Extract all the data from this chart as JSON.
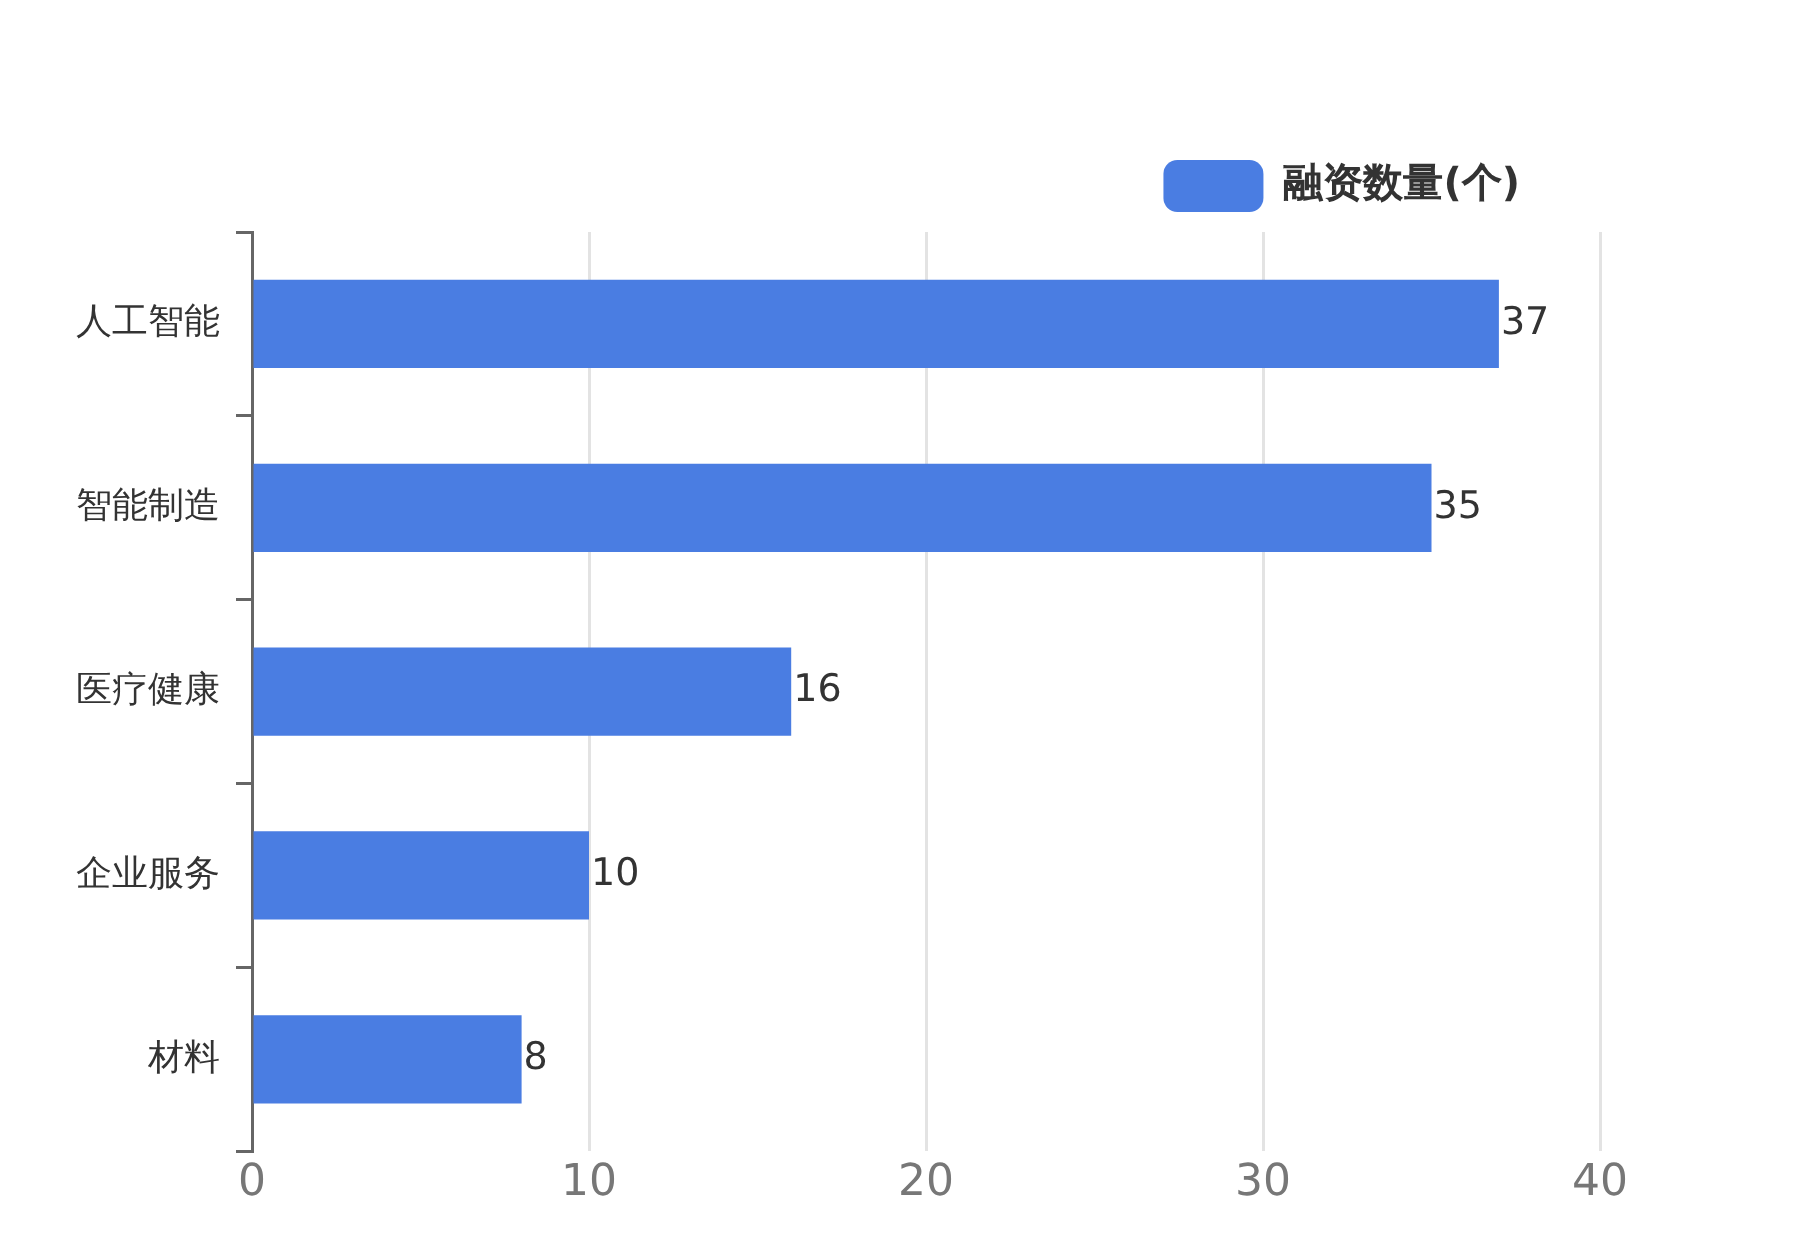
{
  "chart_data": {
    "type": "bar",
    "orientation": "horizontal",
    "categories": [
      "人工智能",
      "智能制造",
      "医疗健康",
      "企业服务",
      "材料"
    ],
    "series": [
      {
        "name": "融资数量(个)",
        "color": "#4a7de2",
        "values": [
          37,
          35,
          16,
          10,
          8
        ]
      }
    ],
    "xlim": [
      0,
      40
    ],
    "xticks": [
      0,
      10,
      20,
      30,
      40
    ],
    "grid": "x",
    "legend": "top right",
    "data_labels": true
  }
}
